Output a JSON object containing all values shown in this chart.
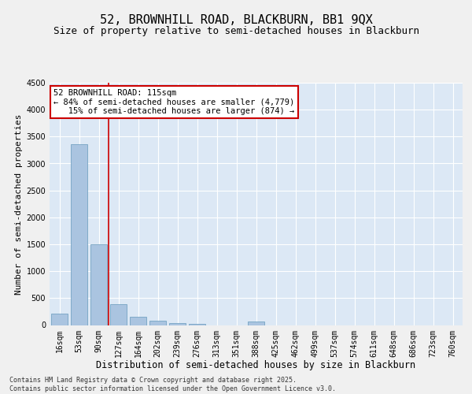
{
  "title1": "52, BROWNHILL ROAD, BLACKBURN, BB1 9QX",
  "title2": "Size of property relative to semi-detached houses in Blackburn",
  "xlabel": "Distribution of semi-detached houses by size in Blackburn",
  "ylabel": "Number of semi-detached properties",
  "categories": [
    "16sqm",
    "53sqm",
    "90sqm",
    "127sqm",
    "164sqm",
    "202sqm",
    "239sqm",
    "276sqm",
    "313sqm",
    "351sqm",
    "388sqm",
    "425sqm",
    "462sqm",
    "499sqm",
    "537sqm",
    "574sqm",
    "611sqm",
    "648sqm",
    "686sqm",
    "723sqm",
    "760sqm"
  ],
  "values": [
    215,
    3360,
    1500,
    390,
    155,
    75,
    40,
    15,
    0,
    0,
    60,
    0,
    0,
    0,
    0,
    0,
    0,
    0,
    0,
    0,
    0
  ],
  "bar_color": "#aac4e0",
  "bar_edge_color": "#6699bb",
  "vline_x": 2.5,
  "vline_color": "#cc0000",
  "annotation_text": "52 BROWNHILL ROAD: 115sqm\n← 84% of semi-detached houses are smaller (4,779)\n   15% of semi-detached houses are larger (874) →",
  "annotation_box_color": "#ffffff",
  "annotation_border_color": "#cc0000",
  "ylim": [
    0,
    4500
  ],
  "yticks": [
    0,
    500,
    1000,
    1500,
    2000,
    2500,
    3000,
    3500,
    4000,
    4500
  ],
  "bg_color": "#dce8f5",
  "grid_color": "#ffffff",
  "footer": "Contains HM Land Registry data © Crown copyright and database right 2025.\nContains public sector information licensed under the Open Government Licence v3.0.",
  "title1_fontsize": 11,
  "title2_fontsize": 9,
  "xlabel_fontsize": 8.5,
  "ylabel_fontsize": 8,
  "tick_fontsize": 7,
  "annotation_fontsize": 7.5,
  "fig_bg": "#f0f0f0"
}
